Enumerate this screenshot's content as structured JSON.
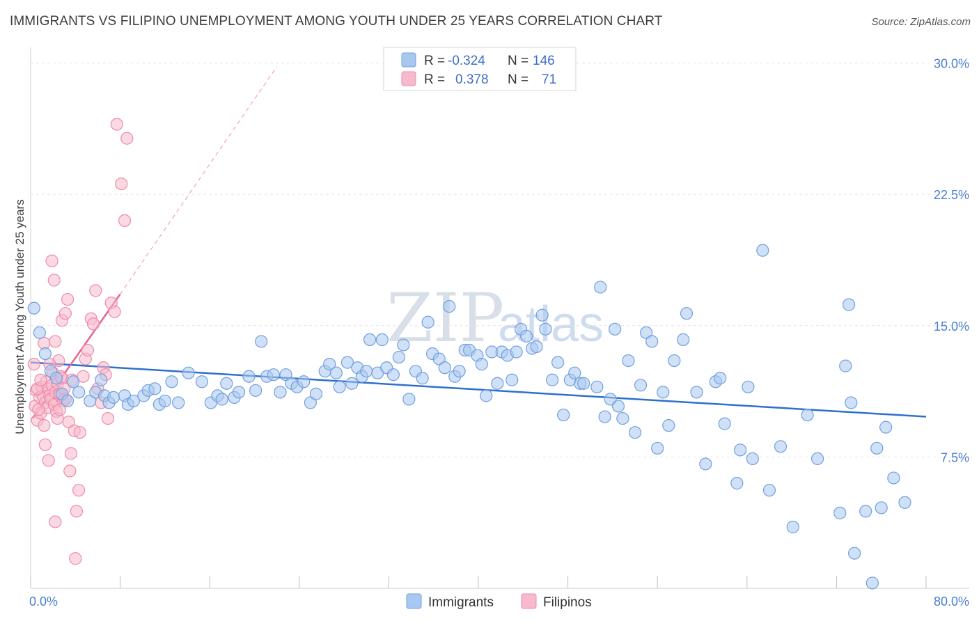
{
  "title": "IMMIGRANTS VS FILIPINO UNEMPLOYMENT AMONG YOUTH UNDER 25 YEARS CORRELATION CHART",
  "source": "Source: ZipAtlas.com",
  "watermark": {
    "zip": "ZIP",
    "atlas": "atlas"
  },
  "legend": {
    "r_label": "R =",
    "n_label": "N =",
    "rows": [
      {
        "series": "Immigrants",
        "r": "-0.324",
        "n": "146"
      },
      {
        "series": "Filipinos",
        "r": "0.378",
        "n": "71"
      }
    ]
  },
  "colors": {
    "immigrants_fill": "#a9c8f0",
    "immigrants_stroke": "#6f9fe0",
    "immigrants_line": "#2f6fce",
    "filipinos_fill": "#f7b9cc",
    "filipinos_stroke": "#ee8aa8",
    "filipinos_line": "#e8648e",
    "axis_text": "#4a7fd0",
    "grid": "#e4e4e4"
  },
  "chart_data": {
    "type": "scatter",
    "title": "IMMIGRANTS VS FILIPINO UNEMPLOYMENT AMONG YOUTH UNDER 25 YEARS CORRELATION CHART",
    "xlabel": "",
    "ylabel": "Unemployment Among Youth under 25 years",
    "xlim": [
      0,
      80
    ],
    "ylim": [
      0,
      30.5
    ],
    "x_tick_labels": [
      "0.0%",
      "80.0%"
    ],
    "y_ticks": [
      7.5,
      15.0,
      22.5,
      30.0
    ],
    "y_tick_labels": [
      "7.5%",
      "15.0%",
      "22.5%",
      "30.0%"
    ],
    "x_minor_ticks": [
      0,
      8,
      16,
      24,
      32,
      40,
      48,
      56,
      64,
      72,
      80
    ],
    "grid": true,
    "series": [
      {
        "name": "Immigrants",
        "trend": {
          "x": [
            0,
            80
          ],
          "y": [
            12.9,
            9.8
          ]
        },
        "points": [
          [
            0.3,
            16.0
          ],
          [
            0.8,
            14.6
          ],
          [
            1.3,
            13.4
          ],
          [
            1.8,
            12.4
          ],
          [
            2.3,
            12.0
          ],
          [
            2.8,
            11.1
          ],
          [
            3.3,
            10.7
          ],
          [
            3.8,
            11.8
          ],
          [
            4.3,
            11.2
          ],
          [
            5.3,
            10.7
          ],
          [
            5.8,
            11.2
          ],
          [
            6.3,
            11.9
          ],
          [
            6.6,
            11.0
          ],
          [
            7.0,
            10.6
          ],
          [
            7.4,
            10.9
          ],
          [
            8.4,
            11.0
          ],
          [
            8.7,
            10.5
          ],
          [
            9.2,
            10.7
          ],
          [
            10.1,
            11.0
          ],
          [
            10.5,
            11.3
          ],
          [
            11.1,
            11.4
          ],
          [
            11.5,
            10.5
          ],
          [
            12.0,
            10.7
          ],
          [
            12.6,
            11.8
          ],
          [
            13.2,
            10.6
          ],
          [
            14.1,
            12.3
          ],
          [
            15.3,
            11.8
          ],
          [
            16.1,
            10.6
          ],
          [
            16.7,
            11.0
          ],
          [
            17.1,
            10.8
          ],
          [
            17.5,
            11.7
          ],
          [
            18.2,
            10.9
          ],
          [
            18.6,
            11.2
          ],
          [
            19.5,
            12.1
          ],
          [
            20.1,
            11.3
          ],
          [
            20.6,
            14.1
          ],
          [
            21.1,
            12.1
          ],
          [
            21.7,
            12.2
          ],
          [
            22.3,
            11.2
          ],
          [
            22.8,
            12.2
          ],
          [
            23.3,
            11.7
          ],
          [
            23.8,
            11.5
          ],
          [
            24.4,
            11.8
          ],
          [
            25.0,
            10.6
          ],
          [
            25.5,
            11.1
          ],
          [
            26.3,
            12.4
          ],
          [
            26.7,
            12.8
          ],
          [
            27.3,
            12.3
          ],
          [
            27.6,
            11.5
          ],
          [
            28.3,
            12.9
          ],
          [
            28.7,
            11.7
          ],
          [
            29.2,
            12.6
          ],
          [
            29.6,
            12.1
          ],
          [
            30.0,
            12.4
          ],
          [
            30.3,
            14.2
          ],
          [
            31.0,
            12.3
          ],
          [
            31.4,
            14.2
          ],
          [
            31.8,
            12.6
          ],
          [
            32.4,
            12.2
          ],
          [
            32.9,
            13.2
          ],
          [
            33.3,
            13.9
          ],
          [
            33.8,
            10.8
          ],
          [
            34.4,
            12.4
          ],
          [
            35.0,
            12.0
          ],
          [
            35.5,
            15.2
          ],
          [
            35.9,
            13.4
          ],
          [
            36.5,
            13.1
          ],
          [
            37.0,
            12.6
          ],
          [
            37.4,
            16.1
          ],
          [
            37.9,
            12.1
          ],
          [
            38.3,
            12.4
          ],
          [
            38.8,
            13.6
          ],
          [
            39.2,
            13.6
          ],
          [
            39.9,
            13.3
          ],
          [
            40.3,
            12.8
          ],
          [
            40.7,
            11.0
          ],
          [
            41.2,
            13.5
          ],
          [
            41.7,
            11.7
          ],
          [
            42.1,
            13.5
          ],
          [
            42.6,
            13.3
          ],
          [
            43.0,
            11.9
          ],
          [
            43.4,
            13.5
          ],
          [
            43.8,
            14.8
          ],
          [
            44.3,
            14.4
          ],
          [
            44.8,
            13.7
          ],
          [
            45.2,
            13.8
          ],
          [
            45.7,
            15.6
          ],
          [
            46.0,
            14.8
          ],
          [
            46.6,
            11.9
          ],
          [
            47.1,
            12.9
          ],
          [
            47.6,
            9.9
          ],
          [
            48.2,
            11.9
          ],
          [
            48.6,
            12.3
          ],
          [
            49.1,
            11.7
          ],
          [
            49.4,
            11.7
          ],
          [
            50.6,
            11.5
          ],
          [
            50.9,
            17.2
          ],
          [
            51.3,
            9.8
          ],
          [
            51.8,
            10.8
          ],
          [
            52.2,
            14.8
          ],
          [
            52.5,
            10.4
          ],
          [
            52.9,
            9.7
          ],
          [
            53.4,
            13.0
          ],
          [
            54.0,
            8.9
          ],
          [
            54.5,
            11.6
          ],
          [
            55.0,
            14.6
          ],
          [
            55.5,
            14.1
          ],
          [
            56.0,
            8.0
          ],
          [
            56.5,
            11.2
          ],
          [
            57.0,
            9.3
          ],
          [
            57.5,
            13.0
          ],
          [
            58.3,
            14.2
          ],
          [
            58.6,
            15.7
          ],
          [
            59.5,
            11.2
          ],
          [
            60.3,
            7.1
          ],
          [
            61.2,
            11.8
          ],
          [
            61.6,
            12.0
          ],
          [
            62.0,
            9.4
          ],
          [
            63.1,
            6.0
          ],
          [
            63.4,
            7.9
          ],
          [
            64.1,
            11.5
          ],
          [
            64.5,
            7.4
          ],
          [
            65.4,
            19.3
          ],
          [
            66.0,
            5.6
          ],
          [
            67.0,
            8.1
          ],
          [
            68.1,
            3.5
          ],
          [
            69.4,
            9.9
          ],
          [
            70.3,
            7.4
          ],
          [
            72.3,
            4.3
          ],
          [
            72.8,
            12.7
          ],
          [
            73.1,
            16.2
          ],
          [
            73.3,
            10.6
          ],
          [
            73.6,
            2.0
          ],
          [
            74.6,
            4.4
          ],
          [
            75.2,
            0.3
          ],
          [
            75.6,
            8.0
          ],
          [
            76.0,
            4.6
          ],
          [
            76.4,
            9.2
          ],
          [
            77.1,
            6.3
          ],
          [
            78.1,
            4.9
          ]
        ]
      },
      {
        "name": "Filipinos",
        "trend": {
          "x": [
            0.2,
            8.0
          ],
          "y": [
            9.7,
            16.8
          ]
        },
        "trend_extension": {
          "x": [
            8.0,
            22.0
          ],
          "y": [
            16.8,
            29.8
          ]
        },
        "points": [
          [
            0.3,
            12.8
          ],
          [
            0.4,
            10.4
          ],
          [
            0.5,
            11.3
          ],
          [
            0.6,
            9.6
          ],
          [
            0.8,
            10.9
          ],
          [
            0.9,
            10.0
          ],
          [
            1.0,
            11.5
          ],
          [
            1.1,
            11.0
          ],
          [
            1.2,
            9.3
          ],
          [
            1.3,
            10.6
          ],
          [
            1.4,
            11.8
          ],
          [
            1.5,
            10.3
          ],
          [
            1.6,
            11.4
          ],
          [
            1.7,
            11.0
          ],
          [
            1.8,
            10.8
          ],
          [
            1.9,
            11.6
          ],
          [
            2.0,
            12.3
          ],
          [
            2.1,
            10.5
          ],
          [
            2.2,
            11.2
          ],
          [
            2.3,
            10.1
          ],
          [
            2.4,
            11.7
          ],
          [
            2.5,
            13.0
          ],
          [
            2.6,
            11.0
          ],
          [
            2.7,
            12.1
          ],
          [
            2.8,
            12.0
          ],
          [
            2.9,
            10.7
          ],
          [
            1.2,
            14.0
          ],
          [
            1.7,
            12.8
          ],
          [
            2.2,
            14.1
          ],
          [
            2.6,
            11.1
          ],
          [
            3.0,
            11.4
          ],
          [
            3.1,
            10.8
          ],
          [
            0.6,
            11.4
          ],
          [
            0.7,
            10.2
          ],
          [
            0.9,
            11.9
          ],
          [
            1.3,
            8.2
          ],
          [
            1.6,
            7.3
          ],
          [
            1.9,
            18.7
          ],
          [
            2.1,
            17.6
          ],
          [
            2.4,
            9.7
          ],
          [
            2.6,
            10.2
          ],
          [
            2.8,
            15.3
          ],
          [
            3.1,
            15.7
          ],
          [
            3.3,
            16.5
          ],
          [
            3.4,
            9.5
          ],
          [
            3.6,
            7.7
          ],
          [
            3.7,
            11.9
          ],
          [
            3.9,
            9.0
          ],
          [
            4.1,
            4.4
          ],
          [
            4.3,
            5.6
          ],
          [
            4.4,
            8.9
          ],
          [
            4.7,
            12.1
          ],
          [
            4.9,
            13.1
          ],
          [
            5.1,
            13.6
          ],
          [
            5.4,
            15.4
          ],
          [
            5.6,
            15.1
          ],
          [
            5.8,
            17.0
          ],
          [
            6.0,
            11.4
          ],
          [
            6.3,
            10.6
          ],
          [
            6.5,
            12.6
          ],
          [
            6.7,
            12.2
          ],
          [
            6.9,
            9.7
          ],
          [
            7.2,
            16.3
          ],
          [
            7.5,
            15.8
          ],
          [
            7.7,
            26.5
          ],
          [
            8.1,
            23.1
          ],
          [
            8.4,
            21.0
          ],
          [
            8.6,
            25.7
          ],
          [
            2.2,
            3.8
          ],
          [
            3.5,
            6.7
          ],
          [
            4.0,
            1.7
          ]
        ]
      }
    ]
  }
}
